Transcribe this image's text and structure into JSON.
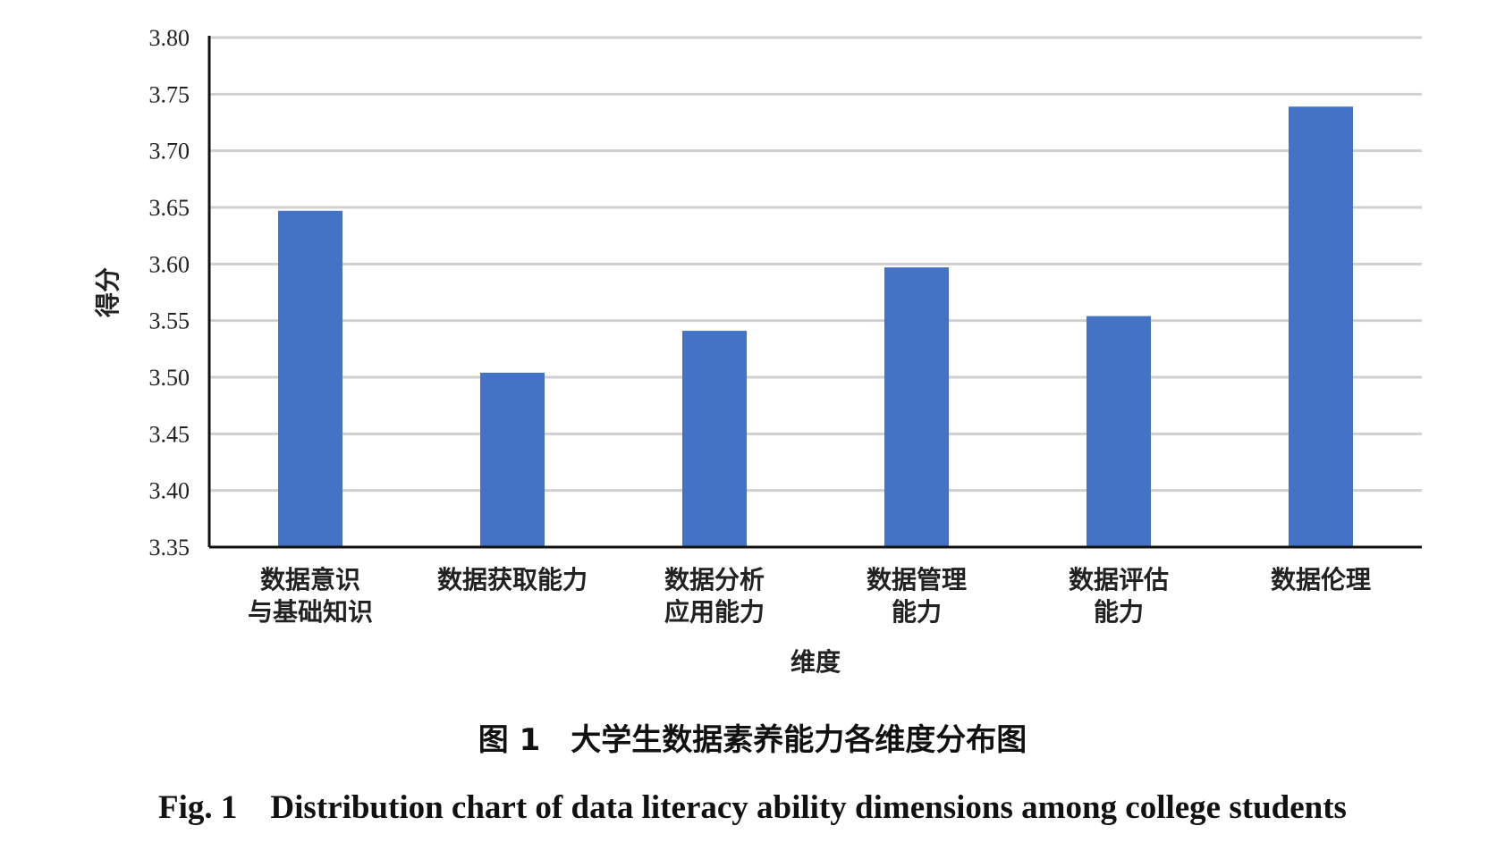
{
  "chart_data": {
    "type": "bar",
    "categories": [
      [
        "数据意识",
        "与基础知识"
      ],
      [
        "数据获取能力"
      ],
      [
        "数据分析",
        "应用能力"
      ],
      [
        "数据管理",
        "能力"
      ],
      [
        "数据评估",
        "能力"
      ],
      [
        "数据伦理"
      ]
    ],
    "values": [
      3.647,
      3.504,
      3.541,
      3.597,
      3.554,
      3.739
    ],
    "xlabel": "维度",
    "ylabel": "得分",
    "ylim": [
      3.35,
      3.8
    ],
    "yticks": [
      "3.35",
      "3.40",
      "3.45",
      "3.50",
      "3.55",
      "3.60",
      "3.65",
      "3.70",
      "3.75",
      "3.80"
    ],
    "grid": true,
    "bar_color": "#4472C4",
    "grid_color": "#D0D0D0"
  },
  "caption": {
    "cn": "图 1　大学生数据素养能力各维度分布图",
    "en": "Fig. 1　Distribution chart of data literacy ability dimensions among college students"
  }
}
